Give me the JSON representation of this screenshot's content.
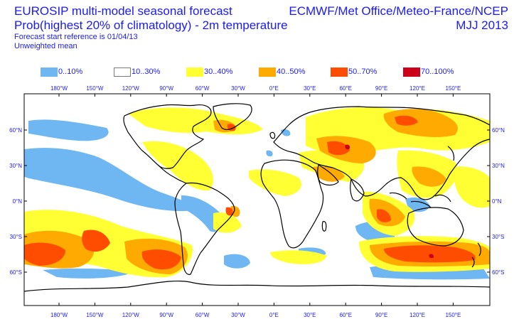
{
  "header": {
    "title_line1": "EUROSIP multi-model seasonal forecast",
    "title_line2": "Prob(highest 20% of climatology) - 2m temperature",
    "subtitle_line1": "Forecast start reference is 01/04/13",
    "subtitle_line2": "Unweighted mean",
    "source": "ECMWF/Met Office/Meteo-France/NCEP",
    "period": "MJJ 2013"
  },
  "legend": [
    {
      "label": "0..10%",
      "color": "#6fb7f2"
    },
    {
      "label": "10..30%",
      "color": "#ffffff"
    },
    {
      "label": "30..40%",
      "color": "#ffff33"
    },
    {
      "label": "40..50%",
      "color": "#ffaa00"
    },
    {
      "label": "50..70%",
      "color": "#ff4d00"
    },
    {
      "label": "70..100%",
      "color": "#cc0019"
    }
  ],
  "axes": {
    "lon_ticks": [
      "180°W",
      "150°W",
      "120°W",
      "90°W",
      "60°W",
      "30°W",
      "0°E",
      "30°E",
      "60°E",
      "90°E",
      "120°E",
      "150°E"
    ],
    "lat_ticks_left": [
      "60°N",
      "30°N",
      "0°N",
      "30°S",
      "60°S"
    ],
    "lat_ticks_right": [
      "60°N",
      "30°N",
      "0°N",
      "30°S",
      "60°S"
    ]
  },
  "colors": {
    "text": "#1a1aff",
    "frame": "#000000",
    "coast": "#000000"
  }
}
